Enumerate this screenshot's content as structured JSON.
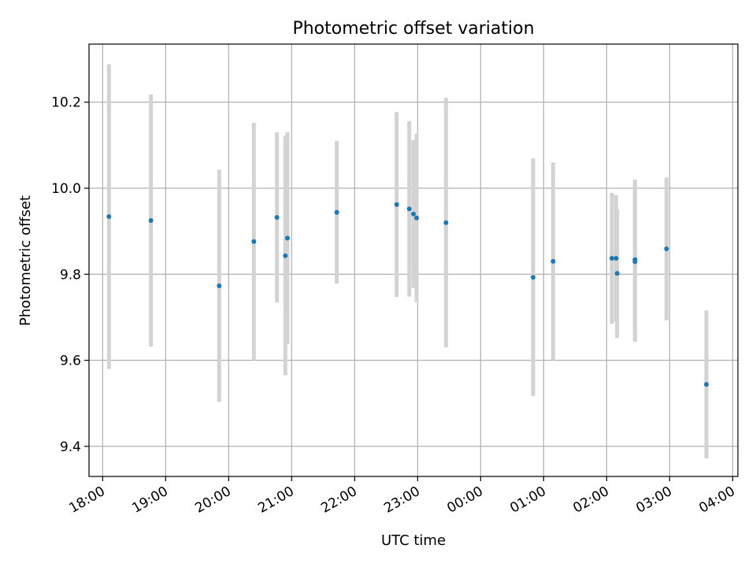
{
  "chart_data": {
    "type": "scatter",
    "title": "Photometric offset variation",
    "xlabel": "UTC time",
    "ylabel": "Photometric offset",
    "x_axis": {
      "kind": "time",
      "range": [
        "2024-01-01T17:47",
        "2024-01-02T04:05"
      ],
      "ticks": [
        {
          "t": "2024-01-01T18:00",
          "label": "18:00"
        },
        {
          "t": "2024-01-01T19:00",
          "label": "19:00"
        },
        {
          "t": "2024-01-01T20:00",
          "label": "20:00"
        },
        {
          "t": "2024-01-01T21:00",
          "label": "21:00"
        },
        {
          "t": "2024-01-01T22:00",
          "label": "22:00"
        },
        {
          "t": "2024-01-01T23:00",
          "label": "23:00"
        },
        {
          "t": "2024-01-02T00:00",
          "label": "00:00"
        },
        {
          "t": "2024-01-02T01:00",
          "label": "01:00"
        },
        {
          "t": "2024-01-02T02:00",
          "label": "02:00"
        },
        {
          "t": "2024-01-02T03:00",
          "label": "03:00"
        },
        {
          "t": "2024-01-02T04:00",
          "label": "04:00"
        }
      ]
    },
    "y_axis": {
      "range": [
        9.33,
        10.335
      ],
      "ticks": [
        {
          "v": 9.4,
          "label": "9.4"
        },
        {
          "v": 9.6,
          "label": "9.6"
        },
        {
          "v": 9.8,
          "label": "9.8"
        },
        {
          "v": 10.0,
          "label": "10.0"
        },
        {
          "v": 10.2,
          "label": "10.2"
        }
      ]
    },
    "grid": true,
    "marker_color": "#1f77b4",
    "errorbar_color": "#d3d3d3",
    "points": [
      {
        "t": "2024-01-01T18:06",
        "y": 9.934,
        "lo": 9.58,
        "hi": 10.288
      },
      {
        "t": "2024-01-01T18:46",
        "y": 9.925,
        "lo": 9.632,
        "hi": 10.218
      },
      {
        "t": "2024-01-01T19:51",
        "y": 9.773,
        "lo": 9.503,
        "hi": 10.043
      },
      {
        "t": "2024-01-01T20:24",
        "y": 9.876,
        "lo": 9.6,
        "hi": 10.152
      },
      {
        "t": "2024-01-01T20:46",
        "y": 9.932,
        "lo": 9.734,
        "hi": 10.13
      },
      {
        "t": "2024-01-01T20:54",
        "y": 9.843,
        "lo": 9.565,
        "hi": 10.121
      },
      {
        "t": "2024-01-01T20:56",
        "y": 9.884,
        "lo": 9.638,
        "hi": 10.13
      },
      {
        "t": "2024-01-01T21:43",
        "y": 9.944,
        "lo": 9.778,
        "hi": 10.11
      },
      {
        "t": "2024-01-01T22:40",
        "y": 9.962,
        "lo": 9.747,
        "hi": 10.177
      },
      {
        "t": "2024-01-01T22:52",
        "y": 9.952,
        "lo": 9.748,
        "hi": 10.156
      },
      {
        "t": "2024-01-01T22:56",
        "y": 9.94,
        "lo": 9.768,
        "hi": 10.112
      },
      {
        "t": "2024-01-01T22:59",
        "y": 9.931,
        "lo": 9.735,
        "hi": 10.127
      },
      {
        "t": "2024-01-01T23:27",
        "y": 9.92,
        "lo": 9.63,
        "hi": 10.21
      },
      {
        "t": "2024-01-02T00:50",
        "y": 9.793,
        "lo": 9.517,
        "hi": 10.069
      },
      {
        "t": "2024-01-02T01:09",
        "y": 9.83,
        "lo": 9.6,
        "hi": 10.06
      },
      {
        "t": "2024-01-02T02:05",
        "y": 9.837,
        "lo": 9.685,
        "hi": 9.989
      },
      {
        "t": "2024-01-02T02:09",
        "y": 9.837,
        "lo": 9.69,
        "hi": 9.984
      },
      {
        "t": "2024-01-02T02:10",
        "y": 9.802,
        "lo": 9.652,
        "hi": 9.952
      },
      {
        "t": "2024-01-02T02:27",
        "y": 9.834,
        "lo": 9.648,
        "hi": 10.02
      },
      {
        "t": "2024-01-02T02:27",
        "y": 9.829,
        "lo": 9.643,
        "hi": 10.015
      },
      {
        "t": "2024-01-02T02:57",
        "y": 9.859,
        "lo": 9.693,
        "hi": 10.025
      },
      {
        "t": "2024-01-02T03:35",
        "y": 9.544,
        "lo": 9.372,
        "hi": 9.716
      }
    ]
  }
}
